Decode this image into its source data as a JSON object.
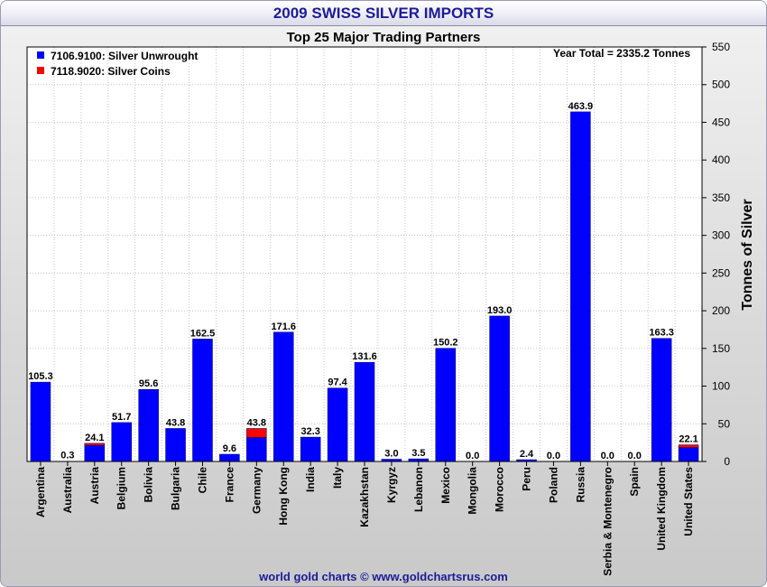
{
  "header": {
    "title": "2009 SWISS SILVER IMPORTS",
    "footer": "world gold charts © www.goldchartsrus.com"
  },
  "chart_data": {
    "type": "bar",
    "stacked": true,
    "title": "Top 25 Major Trading Partners",
    "annotation": "Year Total = 2335.2 Tonnes",
    "ylabel": "Tonnes of Silver",
    "xlabel": "",
    "ylim": [
      0,
      550
    ],
    "yticks": [
      0,
      50,
      100,
      150,
      200,
      250,
      300,
      350,
      400,
      450,
      500,
      550
    ],
    "y_axis_position": "right",
    "grid": true,
    "legend_position": "top-left",
    "categories": [
      "Argentina",
      "Australia",
      "Austria",
      "Belgium",
      "Bolivia",
      "Bulgaria",
      "Chile",
      "France",
      "Germany",
      "Hong Kong",
      "India",
      "Italy",
      "Kazakhstan",
      "Kyrgyz",
      "Lebanon",
      "Mexico",
      "Mongolia",
      "Morocco",
      "Peru",
      "Poland",
      "Russia",
      "Serbia & Montenegro",
      "Spain",
      "United Kingdom",
      "United States"
    ],
    "series": [
      {
        "name": "7106.9100: Silver Unwrought",
        "color": "#0000ff",
        "values": [
          105.3,
          0.3,
          21.5,
          51.7,
          95.6,
          43.8,
          162.5,
          9.6,
          31.8,
          171.6,
          32.3,
          97.4,
          131.6,
          3.0,
          3.5,
          150.2,
          0.0,
          193.0,
          2.4,
          0.0,
          463.9,
          0.0,
          0.0,
          163.3,
          18.5
        ]
      },
      {
        "name": "7118.9020: Silver Coins",
        "color": "#ff0000",
        "values": [
          0,
          0,
          2.6,
          0,
          0,
          0,
          0,
          0,
          12.0,
          0,
          0,
          0,
          0,
          0,
          0,
          0,
          0,
          0,
          0,
          0,
          0,
          0,
          0,
          0,
          3.6
        ]
      }
    ],
    "data_labels": [
      "105.3",
      "0.3",
      "24.1",
      "51.7",
      "95.6",
      "43.8",
      "162.5",
      "9.6",
      "43.8",
      "171.6",
      "32.3",
      "97.4",
      "131.6",
      "3.0",
      "3.5",
      "150.2",
      "0.0",
      "193.0",
      "2.4",
      "0.0",
      "463.9",
      "0.0",
      "0.0",
      "163.3",
      "22.1"
    ]
  }
}
